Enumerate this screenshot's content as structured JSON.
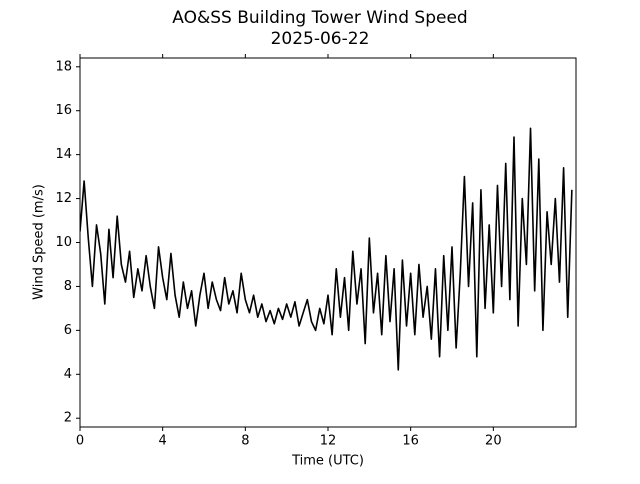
{
  "chart_data": {
    "type": "line",
    "title": "AO&SS Building Tower Wind Speed",
    "subtitle": "2025-06-22",
    "xlabel": "Time (UTC)",
    "ylabel": "Wind Speed (m/s)",
    "xlim": [
      0,
      24
    ],
    "ylim": [
      1.6,
      18.4
    ],
    "xticks": [
      0,
      4,
      8,
      12,
      16,
      20
    ],
    "yticks": [
      2,
      4,
      6,
      8,
      10,
      12,
      14,
      16,
      18
    ],
    "grid": false,
    "x": [
      0.0,
      0.2,
      0.4,
      0.6,
      0.8,
      1.0,
      1.2,
      1.4,
      1.6,
      1.8,
      2.0,
      2.2,
      2.4,
      2.6,
      2.8,
      3.0,
      3.2,
      3.4,
      3.6,
      3.8,
      4.0,
      4.2,
      4.4,
      4.6,
      4.8,
      5.0,
      5.2,
      5.4,
      5.6,
      5.8,
      6.0,
      6.2,
      6.4,
      6.6,
      6.8,
      7.0,
      7.2,
      7.4,
      7.6,
      7.8,
      8.0,
      8.2,
      8.4,
      8.6,
      8.8,
      9.0,
      9.2,
      9.4,
      9.6,
      9.8,
      10.0,
      10.2,
      10.4,
      10.6,
      10.8,
      11.0,
      11.2,
      11.4,
      11.6,
      11.8,
      12.0,
      12.2,
      12.4,
      12.6,
      12.8,
      13.0,
      13.2,
      13.4,
      13.6,
      13.8,
      14.0,
      14.2,
      14.4,
      14.6,
      14.8,
      15.0,
      15.2,
      15.4,
      15.6,
      15.8,
      16.0,
      16.2,
      16.4,
      16.6,
      16.8,
      17.0,
      17.2,
      17.4,
      17.6,
      17.8,
      18.0,
      18.2,
      18.4,
      18.6,
      18.8,
      19.0,
      19.2,
      19.4,
      19.6,
      19.8,
      20.0,
      20.2,
      20.4,
      20.6,
      20.8,
      21.0,
      21.2,
      21.4,
      21.6,
      21.8,
      22.0,
      22.2,
      22.4,
      22.6,
      22.8,
      23.0,
      23.2,
      23.4,
      23.6,
      23.8
    ],
    "series": [
      {
        "color": "#000000",
        "values": [
          10.5,
          12.8,
          10.2,
          8.0,
          10.8,
          9.5,
          7.2,
          10.6,
          8.4,
          11.2,
          9.0,
          8.2,
          9.6,
          7.5,
          8.8,
          7.8,
          9.4,
          8.0,
          7.0,
          9.8,
          8.4,
          7.4,
          9.5,
          7.6,
          6.6,
          8.2,
          7.0,
          7.8,
          6.2,
          7.6,
          8.6,
          7.0,
          8.2,
          7.4,
          6.9,
          8.4,
          7.2,
          7.8,
          6.8,
          8.6,
          7.4,
          6.8,
          7.6,
          6.6,
          7.2,
          6.4,
          6.9,
          6.3,
          7.0,
          6.5,
          7.2,
          6.6,
          7.3,
          6.2,
          6.8,
          7.4,
          6.4,
          6.0,
          7.0,
          6.3,
          7.6,
          5.8,
          8.8,
          6.6,
          8.4,
          6.0,
          9.6,
          7.2,
          8.8,
          5.4,
          10.2,
          6.8,
          8.6,
          5.8,
          9.4,
          6.4,
          8.8,
          4.2,
          9.2,
          6.2,
          8.6,
          5.8,
          9.0,
          6.6,
          8.0,
          5.6,
          8.8,
          4.8,
          9.4,
          6.0,
          9.8,
          5.2,
          8.6,
          13.0,
          8.0,
          11.8,
          4.8,
          12.4,
          7.0,
          10.8,
          6.8,
          12.6,
          8.0,
          13.6,
          7.4,
          14.8,
          6.2,
          12.0,
          9.0,
          15.2,
          7.8,
          13.8,
          6.0,
          11.4,
          9.0,
          12.0,
          8.2,
          13.4,
          6.6,
          12.4
        ]
      }
    ]
  }
}
